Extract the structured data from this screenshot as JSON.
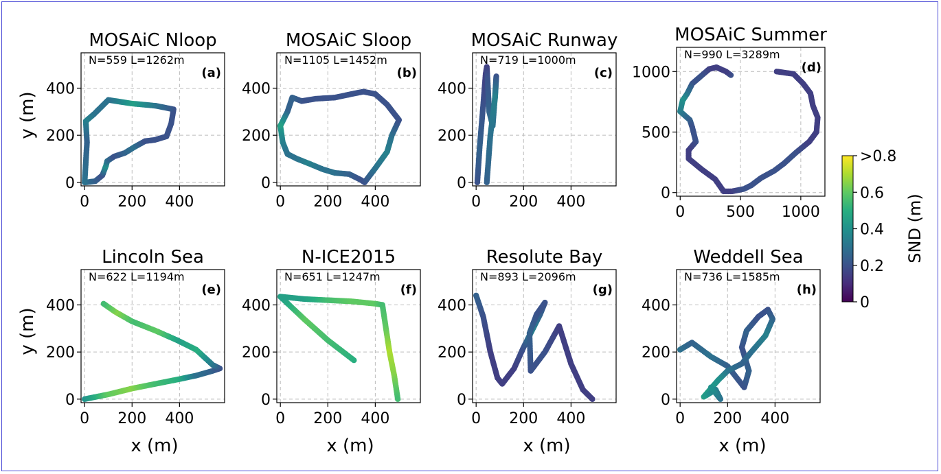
{
  "ylabel": "y (m)",
  "xlabel": "x (m)",
  "colorbar": {
    "label": "SND (m)",
    "ticks": [
      "0",
      "0.2",
      "0.4",
      "0.6",
      ">0.8"
    ],
    "tick_values": [
      0,
      0.2,
      0.4,
      0.6,
      0.8
    ],
    "colormap": "viridis"
  },
  "chart_data": [
    {
      "type": "scatter",
      "title": "MOSAiC Nloop",
      "annotation": "N=559 L=1262m",
      "tag": "(a)",
      "xlim": [
        -15,
        590
      ],
      "ylim": [
        -15,
        550
      ],
      "xticks": [
        0,
        200,
        400
      ],
      "yticks": [
        0,
        200,
        400
      ],
      "grid": true,
      "track": [
        [
          5,
          0
        ],
        [
          45,
          5
        ],
        [
          75,
          30
        ],
        [
          90,
          70
        ],
        [
          95,
          90
        ],
        [
          125,
          110
        ],
        [
          170,
          125
        ],
        [
          210,
          150
        ],
        [
          255,
          175
        ],
        [
          295,
          180
        ],
        [
          345,
          195
        ],
        [
          365,
          250
        ],
        [
          375,
          310
        ],
        [
          300,
          325
        ],
        [
          195,
          335
        ],
        [
          100,
          350
        ],
        [
          40,
          290
        ],
        [
          5,
          260
        ],
        [
          10,
          170
        ],
        [
          0,
          0
        ]
      ],
      "snd": [
        0.3,
        0.25,
        0.2,
        0.4,
        0.3,
        0.2,
        0.25,
        0.3,
        0.2,
        0.2,
        0.2,
        0.2,
        0.2,
        0.3,
        0.45,
        0.3,
        0.3,
        0.35,
        0.25,
        0.3
      ]
    },
    {
      "type": "scatter",
      "title": "MOSAiC Sloop",
      "annotation": "N=1105 L=1452m",
      "tag": "(b)",
      "xlim": [
        -15,
        590
      ],
      "ylim": [
        -15,
        550
      ],
      "xticks": [
        0,
        200,
        400
      ],
      "yticks": [
        0,
        200,
        400
      ],
      "grid": true,
      "track": [
        [
          0,
          240
        ],
        [
          10,
          170
        ],
        [
          30,
          120
        ],
        [
          70,
          100
        ],
        [
          120,
          80
        ],
        [
          180,
          55
        ],
        [
          230,
          40
        ],
        [
          290,
          35
        ],
        [
          340,
          10
        ],
        [
          355,
          0
        ],
        [
          400,
          60
        ],
        [
          450,
          130
        ],
        [
          470,
          200
        ],
        [
          500,
          265
        ],
        [
          450,
          330
        ],
        [
          400,
          375
        ],
        [
          350,
          385
        ],
        [
          300,
          375
        ],
        [
          230,
          360
        ],
        [
          150,
          355
        ],
        [
          90,
          345
        ],
        [
          50,
          360
        ],
        [
          30,
          300
        ],
        [
          0,
          240
        ]
      ],
      "snd": [
        0.45,
        0.35,
        0.3,
        0.3,
        0.35,
        0.3,
        0.3,
        0.25,
        0.2,
        0.2,
        0.3,
        0.35,
        0.3,
        0.2,
        0.2,
        0.2,
        0.2,
        0.2,
        0.2,
        0.2,
        0.2,
        0.25,
        0.25,
        0.45
      ]
    },
    {
      "type": "scatter",
      "title": "MOSAiC Runway",
      "annotation": "N=719 L=1000m",
      "tag": "(c)",
      "xlim": [
        -15,
        590
      ],
      "ylim": [
        -15,
        550
      ],
      "xticks": [
        0,
        200,
        400
      ],
      "yticks": [
        0,
        200,
        400
      ],
      "grid": true,
      "track": [
        [
          5,
          0
        ],
        [
          15,
          150
        ],
        [
          30,
          330
        ],
        [
          40,
          460
        ],
        [
          45,
          490
        ],
        [
          48,
          440
        ],
        [
          55,
          300
        ],
        [
          70,
          240
        ],
        [
          80,
          370
        ],
        [
          85,
          450
        ],
        [
          80,
          360
        ],
        [
          60,
          200
        ],
        [
          45,
          0
        ]
      ],
      "snd": [
        0.2,
        0.25,
        0.2,
        0.15,
        0.15,
        0.2,
        0.25,
        0.3,
        0.25,
        0.2,
        0.35,
        0.3,
        0.25
      ]
    },
    {
      "type": "scatter",
      "title": "MOSAiC Summer",
      "annotation": "N=990 L=3289m",
      "tag": "(d)",
      "xlim": [
        -30,
        1200
      ],
      "ylim": [
        -30,
        1200
      ],
      "xticks": [
        0,
        500,
        1000
      ],
      "yticks": [
        0,
        500,
        1000
      ],
      "grid": true,
      "track": [
        [
          420,
          970
        ],
        [
          380,
          1000
        ],
        [
          300,
          1035
        ],
        [
          240,
          1020
        ],
        [
          170,
          960
        ],
        [
          100,
          900
        ],
        [
          60,
          820
        ],
        [
          20,
          760
        ],
        [
          0,
          670
        ],
        [
          80,
          600
        ],
        [
          100,
          540
        ],
        [
          130,
          420
        ],
        [
          70,
          350
        ],
        [
          70,
          280
        ],
        [
          180,
          190
        ],
        [
          290,
          110
        ],
        [
          360,
          10
        ],
        [
          430,
          10
        ],
        [
          530,
          30
        ],
        [
          590,
          60
        ],
        [
          670,
          120
        ],
        [
          780,
          180
        ],
        [
          860,
          240
        ],
        [
          960,
          330
        ],
        [
          1070,
          420
        ],
        [
          1130,
          500
        ],
        [
          1140,
          620
        ],
        [
          1100,
          720
        ],
        [
          1080,
          820
        ],
        [
          1020,
          900
        ],
        [
          940,
          980
        ],
        [
          800,
          1000
        ]
      ],
      "snd": [
        0.2,
        0.15,
        0.15,
        0.15,
        0.2,
        0.2,
        0.3,
        0.4,
        0.35,
        0.25,
        0.2,
        0.2,
        0.15,
        0.15,
        0.15,
        0.15,
        0.15,
        0.15,
        0.2,
        0.2,
        0.2,
        0.2,
        0.2,
        0.2,
        0.15,
        0.15,
        0.15,
        0.15,
        0.15,
        0.15,
        0.15,
        0.15
      ]
    },
    {
      "type": "scatter",
      "title": "Lincoln Sea",
      "annotation": "N=622 L=1194m",
      "tag": "(e)",
      "xlim": [
        -15,
        590
      ],
      "ylim": [
        -15,
        550
      ],
      "xticks": [
        0,
        200,
        400
      ],
      "yticks": [
        0,
        200,
        400
      ],
      "grid": true,
      "track": [
        [
          0,
          0
        ],
        [
          100,
          20
        ],
        [
          200,
          45
        ],
        [
          300,
          65
        ],
        [
          400,
          85
        ],
        [
          470,
          100
        ],
        [
          540,
          120
        ],
        [
          570,
          130
        ],
        [
          540,
          145
        ],
        [
          470,
          210
        ],
        [
          390,
          250
        ],
        [
          300,
          290
        ],
        [
          200,
          330
        ],
        [
          130,
          370
        ],
        [
          80,
          405
        ]
      ],
      "snd": [
        0.4,
        0.6,
        0.65,
        0.55,
        0.5,
        0.3,
        0.25,
        0.2,
        0.3,
        0.5,
        0.45,
        0.6,
        0.55,
        0.65,
        0.55
      ]
    },
    {
      "type": "scatter",
      "title": "N-ICE2015",
      "annotation": "N=651 L=1247m",
      "tag": "(f)",
      "xlim": [
        -15,
        590
      ],
      "ylim": [
        -15,
        550
      ],
      "xticks": [
        0,
        200,
        400
      ],
      "yticks": [
        0,
        200,
        400
      ],
      "grid": true,
      "track": [
        [
          310,
          165
        ],
        [
          200,
          250
        ],
        [
          100,
          340
        ],
        [
          0,
          435
        ],
        [
          100,
          425
        ],
        [
          200,
          420
        ],
        [
          300,
          415
        ],
        [
          400,
          405
        ],
        [
          430,
          400
        ],
        [
          445,
          300
        ],
        [
          460,
          200
        ],
        [
          480,
          100
        ],
        [
          495,
          0
        ]
      ],
      "snd": [
        0.5,
        0.55,
        0.6,
        0.45,
        0.45,
        0.55,
        0.6,
        0.6,
        0.55,
        0.6,
        0.7,
        0.65,
        0.55
      ]
    },
    {
      "type": "scatter",
      "title": "Resolute Bay",
      "annotation": "N=893 L=2096m",
      "tag": "(g)",
      "xlim": [
        -15,
        590
      ],
      "ylim": [
        -15,
        550
      ],
      "xticks": [
        0,
        200,
        400
      ],
      "yticks": [
        0,
        200,
        400
      ],
      "grid": true,
      "track": [
        [
          0,
          440
        ],
        [
          30,
          350
        ],
        [
          60,
          200
        ],
        [
          90,
          90
        ],
        [
          110,
          65
        ],
        [
          160,
          130
        ],
        [
          200,
          220
        ],
        [
          240,
          300
        ],
        [
          270,
          360
        ],
        [
          290,
          410
        ],
        [
          255,
          360
        ],
        [
          225,
          280
        ],
        [
          230,
          120
        ],
        [
          290,
          200
        ],
        [
          350,
          310
        ],
        [
          400,
          150
        ],
        [
          450,
          40
        ],
        [
          490,
          0
        ]
      ],
      "snd": [
        0.25,
        0.2,
        0.15,
        0.15,
        0.15,
        0.15,
        0.2,
        0.35,
        0.25,
        0.2,
        0.2,
        0.25,
        0.2,
        0.2,
        0.15,
        0.15,
        0.15,
        0.15
      ]
    },
    {
      "type": "scatter",
      "title": "Weddell Sea",
      "annotation": "N=736 L=1585m",
      "tag": "(h)",
      "xlim": [
        -15,
        590
      ],
      "ylim": [
        -15,
        550
      ],
      "xticks": [
        0,
        200,
        400
      ],
      "yticks": [
        0,
        200,
        400
      ],
      "grid": true,
      "track": [
        [
          0,
          210
        ],
        [
          50,
          240
        ],
        [
          130,
          180
        ],
        [
          200,
          140
        ],
        [
          270,
          50
        ],
        [
          290,
          120
        ],
        [
          260,
          220
        ],
        [
          280,
          290
        ],
        [
          330,
          350
        ],
        [
          370,
          380
        ],
        [
          390,
          340
        ],
        [
          360,
          270
        ],
        [
          300,
          200
        ],
        [
          260,
          150
        ],
        [
          200,
          120
        ],
        [
          160,
          80
        ],
        [
          100,
          10
        ],
        [
          150,
          40
        ],
        [
          170,
          0
        ],
        [
          130,
          50
        ]
      ],
      "snd": [
        0.3,
        0.25,
        0.3,
        0.25,
        0.2,
        0.25,
        0.2,
        0.25,
        0.2,
        0.2,
        0.25,
        0.35,
        0.3,
        0.25,
        0.3,
        0.4,
        0.45,
        0.35,
        0.3,
        0.4
      ]
    }
  ]
}
